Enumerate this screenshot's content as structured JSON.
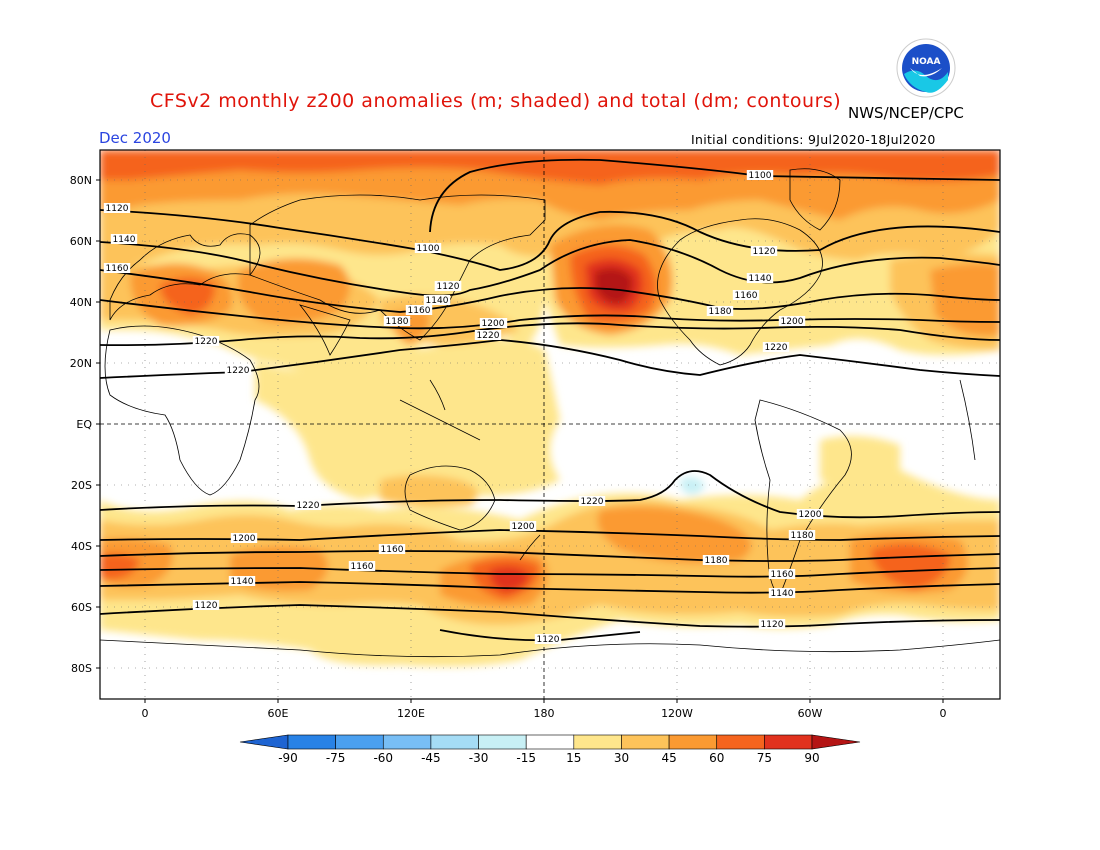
{
  "header": {
    "title": "CFSv2 monthly z200 anomalies (m; shaded) and total (dm; contours)",
    "agency": "NWS/NCEP/CPC",
    "month": "Dec 2020",
    "initial_conditions": "Initial conditions: 9Jul2020-18Jul2020",
    "logo_text": "NOAA"
  },
  "axes": {
    "lat_labels": [
      "80N",
      "60N",
      "40N",
      "20N",
      "EQ",
      "20S",
      "40S",
      "60S",
      "80S"
    ],
    "lon_labels": [
      "0",
      "60E",
      "120E",
      "180",
      "120W",
      "60W",
      "0"
    ]
  },
  "colorbar": {
    "labels": [
      "-90",
      "-75",
      "-60",
      "-45",
      "-30",
      "-15",
      "15",
      "30",
      "45",
      "60",
      "75",
      "90"
    ],
    "colors": [
      "#1e64d2",
      "#2882e6",
      "#4ba0f0",
      "#78bef5",
      "#a5dcf5",
      "#c8f0f5",
      "#ffffff",
      "#fee68c",
      "#fdc35a",
      "#fb9a32",
      "#f5641e",
      "#e1321e",
      "#b41414"
    ]
  },
  "map": {
    "shading_colors": {
      "c15": "#fee68c",
      "c30": "#fdc35a",
      "c45": "#fb9a32",
      "c60": "#f5641e",
      "c75": "#e1321e",
      "c90": "#b41414",
      "neg15": "#c8f0f5"
    },
    "contour_labels": [
      "1100",
      "1100",
      "1120",
      "1140",
      "1160",
      "1180",
      "1120",
      "1140",
      "1160",
      "1180",
      "1200",
      "1220",
      "1200",
      "1220",
      "1120",
      "1140",
      "1160",
      "1180",
      "1200",
      "1220",
      "1220",
      "1220",
      "1220",
      "1200",
      "1200",
      "1200",
      "1180",
      "1160",
      "1160",
      "1180",
      "1160",
      "1140",
      "1140",
      "1120",
      "1120",
      "1120"
    ]
  }
}
